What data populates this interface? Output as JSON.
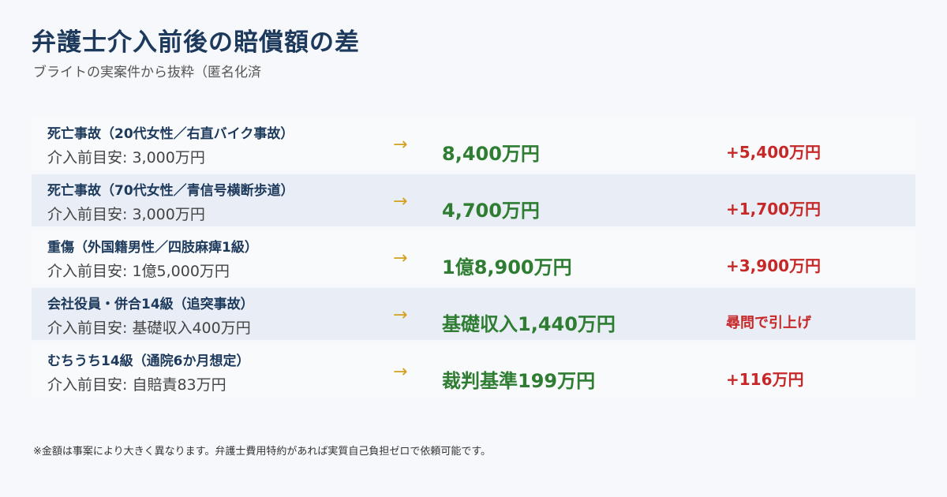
{
  "header": {
    "title": "弁護士介入前後の賠償額の差",
    "subtitle": "ブライトの実案件から抜粋（匿名化済"
  },
  "arrow_glyph": "→",
  "rows": [
    {
      "case": "死亡事故（20代女性／右直バイク事故）",
      "before": "介入前目安: 3,000万円",
      "after": "8,400万円",
      "diff": "+5,400万円"
    },
    {
      "case": "死亡事故（70代女性／青信号横断歩道）",
      "before": "介入前目安: 3,000万円",
      "after": "4,700万円",
      "diff": "+1,700万円"
    },
    {
      "case": "重傷（外国籍男性／四肢麻痺1級）",
      "before": "介入前目安: 1億5,000万円",
      "after": "1億8,900万円",
      "diff": "+3,900万円"
    },
    {
      "case": "会社役員・併合14級（追突事故）",
      "before": "介入前目安: 基礎収入400万円",
      "after": "基礎収入1,440万円",
      "diff": "尋問で引上げ"
    },
    {
      "case": "むちうち14級（通院6か月想定）",
      "before": "介入前目安: 自賠責83万円",
      "after": "裁判基準199万円",
      "diff": "+116万円"
    }
  ],
  "footer": {
    "note": "※金額は事案により大きく異なります。弁護士費用特約があれば実質自己負担ゼロで依頼可能です。"
  },
  "colors": {
    "title": "#1d3a5c",
    "after": "#2e7d32",
    "diff": "#c62828",
    "arrow": "#d4a020",
    "alt_row": "#e9edf5"
  }
}
